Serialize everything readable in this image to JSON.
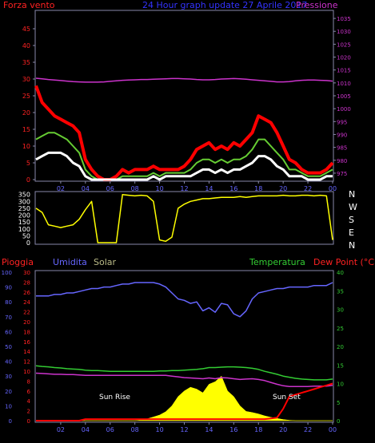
{
  "header": {
    "title": "24 Hour graph update  27 Aprile 2017",
    "left_label": "Forza vento",
    "right_label": "Pressione"
  },
  "direction_axis": {
    "labels": [
      "N",
      "W",
      "S",
      "E",
      "N"
    ]
  },
  "bottom_legend": {
    "pioggia": "Pioggia",
    "umidita": "Umidita",
    "solar": "Solar",
    "temperatura": "Temperatura",
    "dewpoint": "Dew Point (°C)"
  },
  "annotations": {
    "sunrise": "Sun Rise",
    "sunset": "Sun Set"
  },
  "colors": {
    "background": "#000000",
    "wind_gust": "#ff0000",
    "wind_avg": "#66cc33",
    "wind_low": "#ffffff",
    "pressure": "#cc33cc",
    "direction": "#ffff00",
    "humidity": "#6666ff",
    "solar": "#ffff00",
    "temperature": "#33cc33",
    "dewpoint": "#cc33cc",
    "rain": "#ff0000",
    "axis_left": "#ff2222",
    "axis_right_top": "#cc33cc",
    "axis_right_bottom": "#33cc33",
    "axis_humidity": "#6666ff",
    "axis_x": "#6666ff"
  },
  "chart_data": [
    {
      "type": "line",
      "title": "24 Hour graph update  27 Aprile 2017",
      "xlabel": "",
      "x_ticks": [
        "02",
        "04",
        "06",
        "08",
        "10",
        "12",
        "14",
        "16",
        "18",
        "20",
        "22",
        "00"
      ],
      "y_left_ticks": [
        0,
        5,
        10,
        15,
        20,
        25,
        30,
        35,
        40,
        45
      ],
      "y_left_range": [
        0,
        50
      ],
      "y_right_ticks": [
        975,
        980,
        985,
        990,
        995,
        1000,
        1005,
        1010,
        1015,
        1020,
        1025,
        1030,
        1035
      ],
      "y_right_range": [
        972.5,
        1037.5
      ],
      "x_hours": [
        0,
        0.5,
        1,
        1.5,
        2,
        2.5,
        3,
        3.5,
        4,
        4.5,
        5,
        5.5,
        6,
        6.5,
        7,
        7.5,
        8,
        8.5,
        9,
        9.5,
        10,
        10.5,
        11,
        11.5,
        12,
        12.5,
        13,
        13.5,
        14,
        14.5,
        15,
        15.5,
        16,
        16.5,
        17,
        17.5,
        18,
        18.5,
        19,
        19.5,
        20,
        20.5,
        21,
        21.5,
        22,
        22.5,
        23,
        23.5,
        24
      ],
      "series": [
        {
          "name": "Forza vento",
          "values": [
            28,
            23,
            21,
            19,
            18,
            17,
            16,
            14,
            6,
            3,
            1,
            0,
            0,
            1,
            3,
            2,
            3,
            3,
            3,
            4,
            3,
            3,
            3,
            3,
            4,
            6,
            9,
            10,
            11,
            9,
            10,
            9,
            11,
            10,
            12,
            14,
            19,
            18,
            17,
            14,
            10,
            6,
            5,
            3,
            2,
            2,
            2,
            3,
            5
          ]
        },
        {
          "values": [
            12,
            13,
            14,
            14,
            13,
            12,
            10,
            8,
            3,
            1,
            0,
            0,
            0,
            0,
            1,
            1,
            1,
            1,
            1,
            2,
            1,
            2,
            2,
            2,
            2,
            3,
            5,
            6,
            6,
            5,
            6,
            5,
            6,
            6,
            7,
            9,
            12,
            12,
            10,
            8,
            6,
            3,
            3,
            2,
            1,
            1,
            1,
            2,
            3
          ]
        },
        {
          "values": [
            6,
            7,
            8,
            8,
            8,
            7,
            5,
            4,
            1,
            0,
            0,
            0,
            0,
            0,
            0,
            0,
            0,
            0,
            0,
            1,
            0,
            1,
            1,
            1,
            1,
            1,
            2,
            3,
            3,
            2,
            3,
            2,
            3,
            3,
            4,
            5,
            7,
            7,
            6,
            4,
            3,
            1,
            1,
            1,
            0,
            0,
            0,
            1,
            1
          ]
        },
        {
          "name": "Pressione",
          "values": [
            1011.8,
            1011.6,
            1011.3,
            1011.1,
            1010.9,
            1010.7,
            1010.5,
            1010.4,
            1010.3,
            1010.3,
            1010.3,
            1010.4,
            1010.6,
            1010.8,
            1011.0,
            1011.1,
            1011.2,
            1011.3,
            1011.3,
            1011.4,
            1011.5,
            1011.6,
            1011.7,
            1011.7,
            1011.6,
            1011.5,
            1011.3,
            1011.2,
            1011.2,
            1011.3,
            1011.5,
            1011.6,
            1011.7,
            1011.6,
            1011.4,
            1011.2,
            1011.0,
            1010.8,
            1010.6,
            1010.4,
            1010.4,
            1010.5,
            1010.8,
            1011.0,
            1011.1,
            1011.1,
            1011.0,
            1010.9,
            1010.7
          ],
          "axis": "right"
        }
      ]
    },
    {
      "type": "line",
      "y_ticks": [
        0,
        50,
        100,
        150,
        200,
        250,
        300,
        350
      ],
      "y_range": [
        0,
        360
      ],
      "x_ticks": [
        "02",
        "04",
        "06",
        "08",
        "10",
        "12",
        "14",
        "16",
        "18",
        "20",
        "22",
        "00"
      ],
      "x_hours": [
        0,
        0.5,
        1,
        1.5,
        2,
        2.5,
        3,
        3.5,
        4,
        4.5,
        5,
        5.5,
        6,
        6.5,
        7,
        7.5,
        8,
        8.5,
        9,
        9.5,
        10,
        10.5,
        11,
        11.5,
        12,
        12.5,
        13,
        13.5,
        14,
        14.5,
        15,
        15.5,
        16,
        16.5,
        17,
        17.5,
        18,
        18.5,
        19,
        19.5,
        20,
        20.5,
        21,
        21.5,
        22,
        22.5,
        23,
        23.5,
        24
      ],
      "series": [
        {
          "values": [
            250,
            220,
            130,
            120,
            110,
            120,
            130,
            170,
            240,
            300,
            0,
            0,
            0,
            0,
            350,
            345,
            340,
            345,
            340,
            300,
            20,
            10,
            40,
            250,
            280,
            300,
            310,
            320,
            320,
            325,
            330,
            330,
            330,
            335,
            330,
            335,
            340,
            340,
            340,
            340,
            345,
            340,
            340,
            345,
            345,
            340,
            345,
            340,
            20
          ]
        }
      ]
    },
    {
      "type": "line",
      "x_ticks": [
        "02",
        "04",
        "06",
        "08",
        "10",
        "12",
        "14",
        "16",
        "18",
        "20",
        "22",
        "00"
      ],
      "y_humidity_ticks": [
        0,
        10,
        20,
        30,
        40,
        50,
        60,
        70,
        80,
        90,
        100
      ],
      "y_humidity_range": [
        0,
        100
      ],
      "y_left_ticks": [
        0,
        2,
        4,
        6,
        8,
        10,
        12,
        14,
        16,
        18,
        20,
        22,
        24,
        26,
        28,
        30
      ],
      "y_left_range": [
        0,
        30
      ],
      "y_right_ticks": [
        0,
        5,
        10,
        15,
        20,
        25,
        30,
        35,
        40
      ],
      "y_right_range": [
        0,
        40
      ],
      "x_hours": [
        0,
        0.5,
        1,
        1.5,
        2,
        2.5,
        3,
        3.5,
        4,
        4.5,
        5,
        5.5,
        6,
        6.5,
        7,
        7.5,
        8,
        8.5,
        9,
        9.5,
        10,
        10.5,
        11,
        11.5,
        12,
        12.5,
        13,
        13.5,
        14,
        14.5,
        15,
        15.5,
        16,
        16.5,
        17,
        17.5,
        18,
        18.5,
        19,
        19.5,
        20,
        20.5,
        21,
        21.5,
        22,
        22.5,
        23,
        23.5,
        24
      ],
      "series": [
        {
          "name": "Umidita",
          "values": [
            84,
            84,
            84,
            85,
            85,
            86,
            86,
            87,
            88,
            89,
            89,
            90,
            90,
            91,
            92,
            92,
            93,
            93,
            93,
            93,
            92,
            90,
            86,
            82,
            81,
            79,
            80,
            74,
            76,
            73,
            79,
            78,
            72,
            70,
            74,
            82,
            86,
            87,
            88,
            89,
            89,
            90,
            90,
            90,
            90,
            91,
            91,
            91,
            93
          ],
          "axis": "humidity"
        },
        {
          "name": "Temperatura",
          "values": [
            14.8,
            14.6,
            14.5,
            14.3,
            14.2,
            14.0,
            13.9,
            13.8,
            13.6,
            13.5,
            13.5,
            13.4,
            13.3,
            13.3,
            13.3,
            13.3,
            13.3,
            13.3,
            13.3,
            13.3,
            13.4,
            13.4,
            13.5,
            13.5,
            13.6,
            13.7,
            13.8,
            14.0,
            14.3,
            14.3,
            14.4,
            14.5,
            14.5,
            14.4,
            14.3,
            14.1,
            13.8,
            13.3,
            12.9,
            12.5,
            12.0,
            11.7,
            11.4,
            11.2,
            11.1,
            11.0,
            11.0,
            11.0,
            11.2
          ],
          "axis": "right"
        },
        {
          "name": "Dew Point (°C)",
          "values": [
            12.8,
            12.7,
            12.6,
            12.5,
            12.5,
            12.4,
            12.4,
            12.3,
            12.2,
            12.2,
            12.2,
            12.2,
            12.2,
            12.2,
            12.2,
            12.2,
            12.2,
            12.2,
            12.2,
            12.2,
            12.2,
            12.2,
            12.0,
            11.8,
            11.6,
            11.5,
            11.4,
            11.3,
            11.5,
            11.3,
            11.6,
            11.5,
            11.3,
            11.1,
            11.2,
            11.3,
            11.1,
            10.8,
            10.3,
            9.8,
            9.4,
            9.2,
            9.2,
            9.2,
            9.2,
            9.3,
            9.3,
            9.3,
            9.5
          ],
          "axis": "right"
        },
        {
          "name": "Solar",
          "values": [
            0,
            0,
            0,
            0,
            0,
            0,
            0,
            0,
            0,
            0,
            0,
            0,
            0,
            0,
            0,
            0,
            0,
            0.2,
            0.5,
            1.0,
            1.5,
            2.4,
            4.0,
            6.5,
            8.0,
            9.0,
            8.5,
            7.5,
            9.8,
            10.5,
            12.0,
            8.0,
            6.5,
            4.0,
            2.5,
            2.2,
            1.8,
            1.3,
            0.9,
            0.6,
            0.3,
            0.1,
            0,
            0,
            0,
            0,
            0,
            0,
            0
          ],
          "axis": "right"
        },
        {
          "name": "Pioggia",
          "values": [
            0,
            0,
            0,
            0,
            0,
            0,
            0,
            0,
            0.4,
            0.4,
            0.4,
            0.4,
            0.4,
            0.4,
            0.4,
            0.4,
            0.4,
            0.4,
            0.4,
            0.4,
            0.4,
            0.4,
            0.4,
            0.4,
            0.4,
            0.4,
            0.4,
            0.4,
            0.4,
            0.4,
            0.4,
            0.4,
            0.4,
            0.4,
            0.4,
            0.4,
            0.4,
            0.4,
            0.6,
            0.8,
            3.2,
            6.5,
            7.0,
            7.5,
            8.0,
            8.5,
            9.0,
            9.5,
            10.0
          ],
          "axis": "left"
        }
      ]
    }
  ]
}
